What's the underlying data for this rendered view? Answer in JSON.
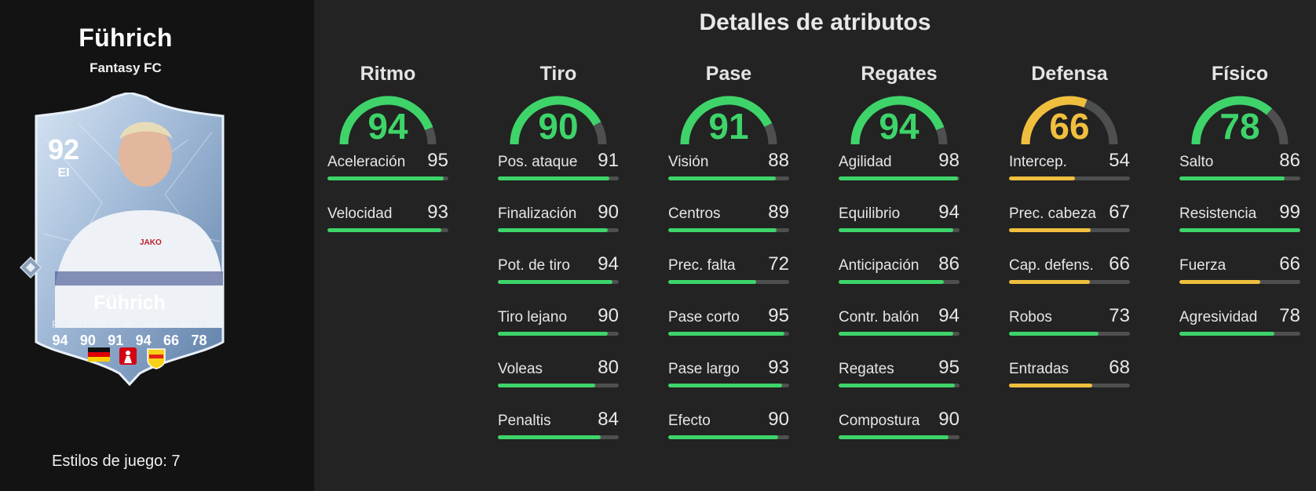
{
  "player": {
    "name": "Führich",
    "club": "Fantasy FC",
    "card_name": "Führich",
    "rating": "92",
    "position": "EI",
    "playstyles_label": "Estilos de juego: 7",
    "card_stats": [
      {
        "label": "RIT",
        "value": "94"
      },
      {
        "label": "TIR",
        "value": "90"
      },
      {
        "label": "PAS",
        "value": "91"
      },
      {
        "label": "REG",
        "value": "94"
      },
      {
        "label": "DEF",
        "value": "66"
      },
      {
        "label": "FÍS",
        "value": "78"
      }
    ],
    "badges": [
      "germany-flag",
      "bundesliga-logo",
      "vfb-stuttgart-crest"
    ]
  },
  "title": "Detalles de atributos",
  "colors": {
    "green": "#3ed46a",
    "yellow": "#f0bf3e",
    "track": "#4e504f"
  },
  "categories": [
    {
      "name": "Ritmo",
      "value": "94",
      "color": "green",
      "stats": [
        {
          "label": "Aceleración",
          "value": "95",
          "color": "green"
        },
        {
          "label": "Velocidad",
          "value": "93",
          "color": "green"
        }
      ]
    },
    {
      "name": "Tiro",
      "value": "90",
      "color": "green",
      "stats": [
        {
          "label": "Pos. ataque",
          "value": "91",
          "color": "green"
        },
        {
          "label": "Finalización",
          "value": "90",
          "color": "green"
        },
        {
          "label": "Pot. de tiro",
          "value": "94",
          "color": "green"
        },
        {
          "label": "Tiro lejano",
          "value": "90",
          "color": "green"
        },
        {
          "label": "Voleas",
          "value": "80",
          "color": "green"
        },
        {
          "label": "Penaltis",
          "value": "84",
          "color": "green"
        }
      ]
    },
    {
      "name": "Pase",
      "value": "91",
      "color": "green",
      "stats": [
        {
          "label": "Visión",
          "value": "88",
          "color": "green"
        },
        {
          "label": "Centros",
          "value": "89",
          "color": "green"
        },
        {
          "label": "Prec. falta",
          "value": "72",
          "color": "green"
        },
        {
          "label": "Pase corto",
          "value": "95",
          "color": "green"
        },
        {
          "label": "Pase largo",
          "value": "93",
          "color": "green"
        },
        {
          "label": "Efecto",
          "value": "90",
          "color": "green"
        }
      ]
    },
    {
      "name": "Regates",
      "value": "94",
      "color": "green",
      "stats": [
        {
          "label": "Agilidad",
          "value": "98",
          "color": "green"
        },
        {
          "label": "Equilibrio",
          "value": "94",
          "color": "green"
        },
        {
          "label": "Anticipación",
          "value": "86",
          "color": "green"
        },
        {
          "label": "Contr. balón",
          "value": "94",
          "color": "green"
        },
        {
          "label": "Regates",
          "value": "95",
          "color": "green"
        },
        {
          "label": "Compostura",
          "value": "90",
          "color": "green"
        }
      ]
    },
    {
      "name": "Defensa",
      "value": "66",
      "color": "yellow",
      "stats": [
        {
          "label": "Intercep.",
          "value": "54",
          "color": "yellow"
        },
        {
          "label": "Prec. cabeza",
          "value": "67",
          "color": "yellow"
        },
        {
          "label": "Cap. defens.",
          "value": "66",
          "color": "yellow"
        },
        {
          "label": "Robos",
          "value": "73",
          "color": "green"
        },
        {
          "label": "Entradas",
          "value": "68",
          "color": "yellow"
        }
      ]
    },
    {
      "name": "Físico",
      "value": "78",
      "color": "green",
      "stats": [
        {
          "label": "Salto",
          "value": "86",
          "color": "green"
        },
        {
          "label": "Resistencia",
          "value": "99",
          "color": "green"
        },
        {
          "label": "Fuerza",
          "value": "66",
          "color": "yellow"
        },
        {
          "label": "Agresividad",
          "value": "78",
          "color": "green"
        }
      ]
    }
  ]
}
